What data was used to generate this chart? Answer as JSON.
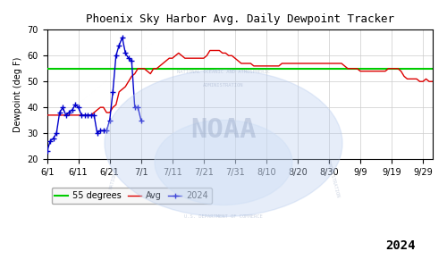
{
  "title": "Phoenix Sky Harbor Avg. Daily Dewpoint Tracker",
  "ylabel": "Dewpoint (deg F)",
  "ylim": [
    20,
    70
  ],
  "yticks": [
    20,
    30,
    40,
    50,
    60,
    70
  ],
  "threshold": 55,
  "threshold_label": "55 degrees",
  "avg_label": "Avg",
  "year_label": "2024",
  "xtick_labels": [
    "6/1",
    "6/11",
    "6/21",
    "7/1",
    "7/11",
    "7/21",
    "7/31",
    "8/10",
    "8/20",
    "8/30",
    "9/9",
    "9/19",
    "9/29"
  ],
  "bg_color": "#ffffff",
  "plot_bg_color": "#ffffff",
  "grid_color": "#cccccc",
  "threshold_color": "#00cc00",
  "avg_color": "#dd0000",
  "year2024_color": "#0000cc",
  "avg_data": [
    37,
    37,
    37,
    37,
    37,
    37,
    37,
    37,
    37,
    37,
    37,
    37,
    37,
    37,
    37,
    38,
    39,
    40,
    40,
    38,
    38,
    40,
    41,
    46,
    47,
    48,
    50,
    52,
    53,
    55,
    55,
    55,
    54,
    53,
    55,
    55,
    56,
    57,
    58,
    59,
    59,
    60,
    61,
    60,
    59,
    59,
    59,
    59,
    59,
    59,
    59,
    60,
    62,
    62,
    62,
    62,
    61,
    61,
    60,
    60,
    59,
    58,
    57,
    57,
    57,
    57,
    56,
    56,
    56,
    56,
    56,
    56,
    56,
    56,
    56,
    57,
    57,
    57,
    57,
    57,
    57,
    57,
    57,
    57,
    57,
    57,
    57,
    57,
    57,
    57,
    57,
    57,
    57,
    57,
    57,
    56,
    55,
    55,
    55,
    55,
    54,
    54,
    54,
    54,
    54,
    54,
    54,
    54,
    54,
    55,
    55,
    55,
    55,
    54,
    52,
    51,
    51,
    51,
    51,
    50,
    50,
    51,
    50,
    50
  ],
  "data2024": [
    [
      0,
      23
    ],
    [
      1,
      27
    ],
    [
      2,
      28
    ],
    [
      3,
      30
    ],
    [
      4,
      38
    ],
    [
      5,
      40
    ],
    [
      6,
      37
    ],
    [
      7,
      38
    ],
    [
      8,
      39
    ],
    [
      9,
      41
    ],
    [
      10,
      40
    ],
    [
      11,
      37
    ],
    [
      12,
      37
    ],
    [
      13,
      37
    ],
    [
      14,
      37
    ],
    [
      15,
      37
    ],
    [
      16,
      30
    ],
    [
      17,
      31
    ],
    [
      18,
      31
    ],
    [
      19,
      31
    ],
    [
      20,
      35
    ],
    [
      21,
      46
    ],
    [
      22,
      60
    ],
    [
      23,
      64
    ],
    [
      24,
      67
    ],
    [
      25,
      61
    ],
    [
      26,
      59
    ],
    [
      27,
      58
    ],
    [
      28,
      40
    ],
    [
      29,
      40
    ],
    [
      30,
      35
    ]
  ],
  "noaa_watermark": true
}
